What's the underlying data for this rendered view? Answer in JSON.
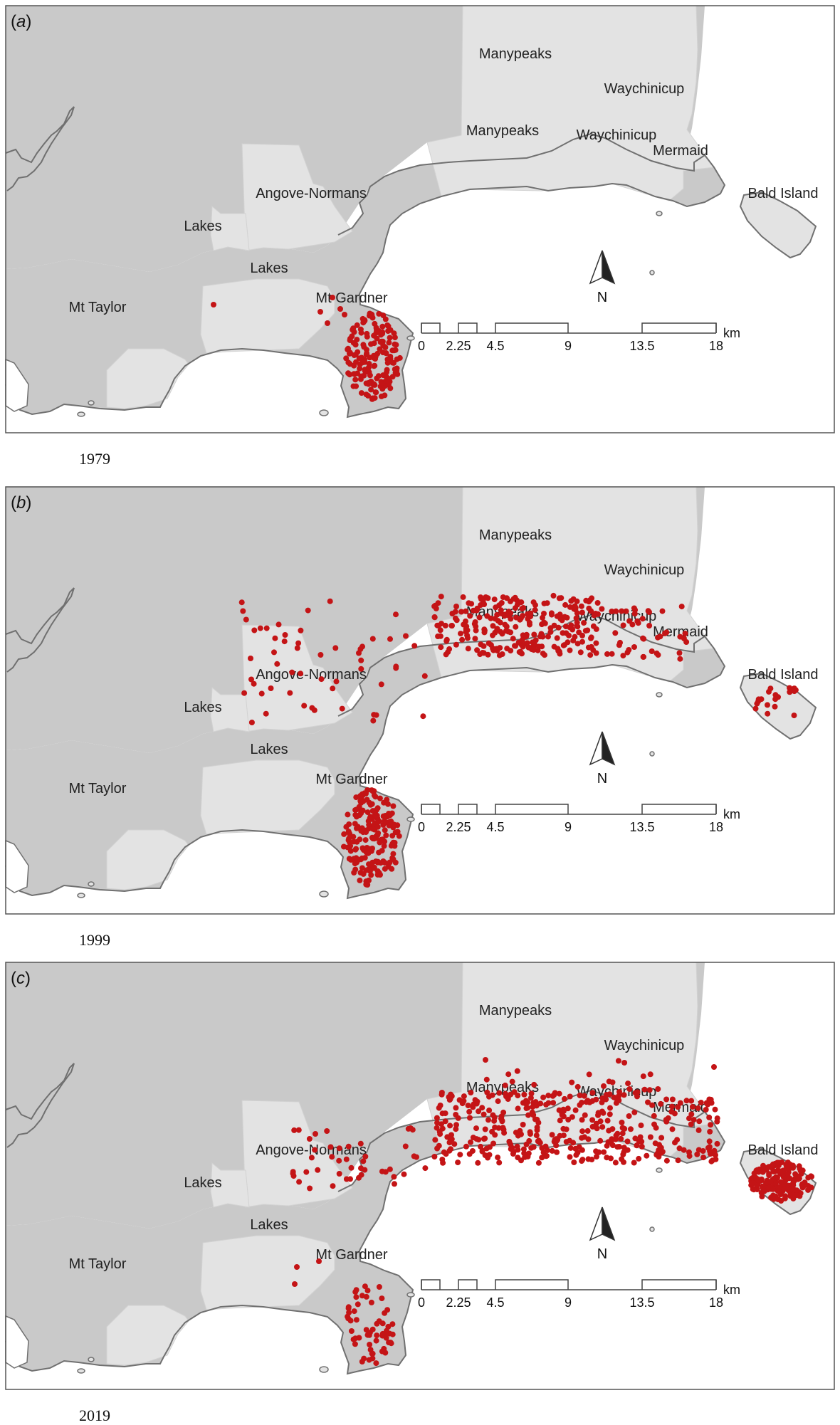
{
  "colors": {
    "land_outside": "#c9c9c9",
    "reserve_land": "#e3e3e3",
    "ocean": "#ffffff",
    "coast_stroke": "#707070",
    "record_dot": "#c41416"
  },
  "legend": {
    "north_label": "N",
    "scale_unit": "km",
    "scale_ticks": [
      "0",
      "2.25",
      "4.5",
      "9",
      "13.5",
      "18"
    ]
  },
  "place_labels": {
    "manypeaks": "Manypeaks",
    "waychinicup": "Waychinicup",
    "mermaid": "Mermaid",
    "bald_island": "Bald Island",
    "angove_normans": "Angove-Normans",
    "lakes": "Lakes",
    "mt_taylor": "Mt Taylor",
    "mt_gardner": "Mt Gardner"
  },
  "panels": [
    {
      "letter": "a",
      "year": "1979",
      "record_density": "low"
    },
    {
      "letter": "b",
      "year": "1999",
      "record_density": "medium"
    },
    {
      "letter": "c",
      "year": "2019",
      "record_density": "high"
    }
  ]
}
